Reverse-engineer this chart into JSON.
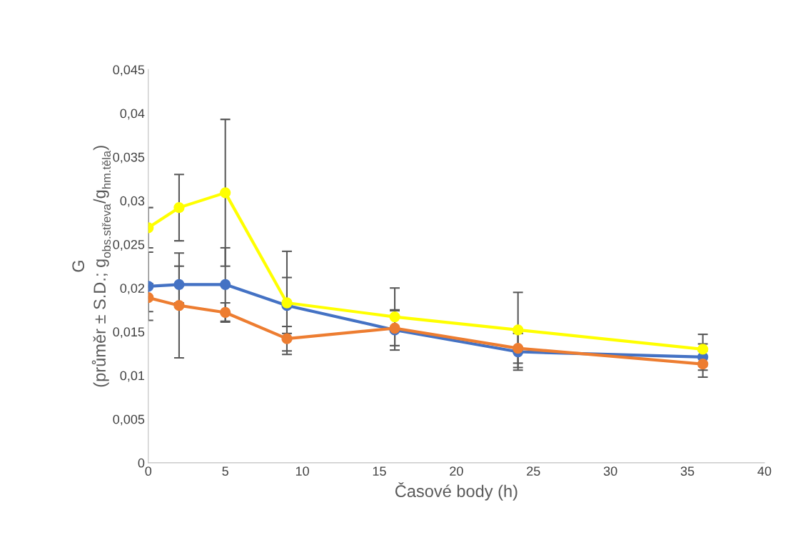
{
  "chart_data": {
    "type": "line",
    "xlabel": "Časové body (h)",
    "ylabel": "G\n(průměr ± S.D.; g$_{obs.střeva}$/g$_{hm.těla}$)",
    "x": [
      0,
      2,
      5,
      9,
      16,
      24,
      36
    ],
    "series": [
      {
        "color": "#4472c4",
        "values": [
          0.0202,
          0.0204,
          0.0204,
          0.018,
          0.0152,
          0.0127,
          0.0121
        ],
        "errors": [
          0.0039,
          0.0021,
          0.0042,
          0.0032,
          0.0023,
          0.0021,
          0.0015
        ]
      },
      {
        "color": "#ed7d31",
        "values": [
          0.0189,
          0.018,
          0.0172,
          0.0142,
          0.0154,
          0.0131,
          0.0113
        ],
        "errors": [
          0.0016,
          0.006,
          0.0011,
          0.0014,
          0.002,
          0.0017,
          0.0015
        ]
      },
      {
        "color": "#ffff00",
        "values": [
          0.0269,
          0.0292,
          0.0309,
          0.0183,
          0.0167,
          0.0152,
          0.013
        ],
        "errors": [
          0.0023,
          0.0038,
          0.0084,
          0.0059,
          0.0033,
          0.0043,
          0.0017
        ]
      }
    ],
    "xlim": [
      0,
      40
    ],
    "xticks": [
      0,
      5,
      10,
      15,
      20,
      25,
      30,
      35,
      40
    ],
    "ylim": [
      0,
      0.045
    ],
    "yticks": [
      {
        "value": 0,
        "label": "0"
      },
      {
        "value": 0.005,
        "label": "0,005"
      },
      {
        "value": 0.01,
        "label": "0,01"
      },
      {
        "value": 0.015,
        "label": "0,015"
      },
      {
        "value": 0.02,
        "label": "0,02"
      },
      {
        "value": 0.025,
        "label": "0,025"
      },
      {
        "value": 0.03,
        "label": "0,03"
      },
      {
        "value": 0.035,
        "label": "0,035"
      },
      {
        "value": 0.04,
        "label": "0,04"
      },
      {
        "value": 0.045,
        "label": "0,045"
      }
    ],
    "marker": "circle",
    "line_style": "solid",
    "grid": false,
    "legend": false
  }
}
